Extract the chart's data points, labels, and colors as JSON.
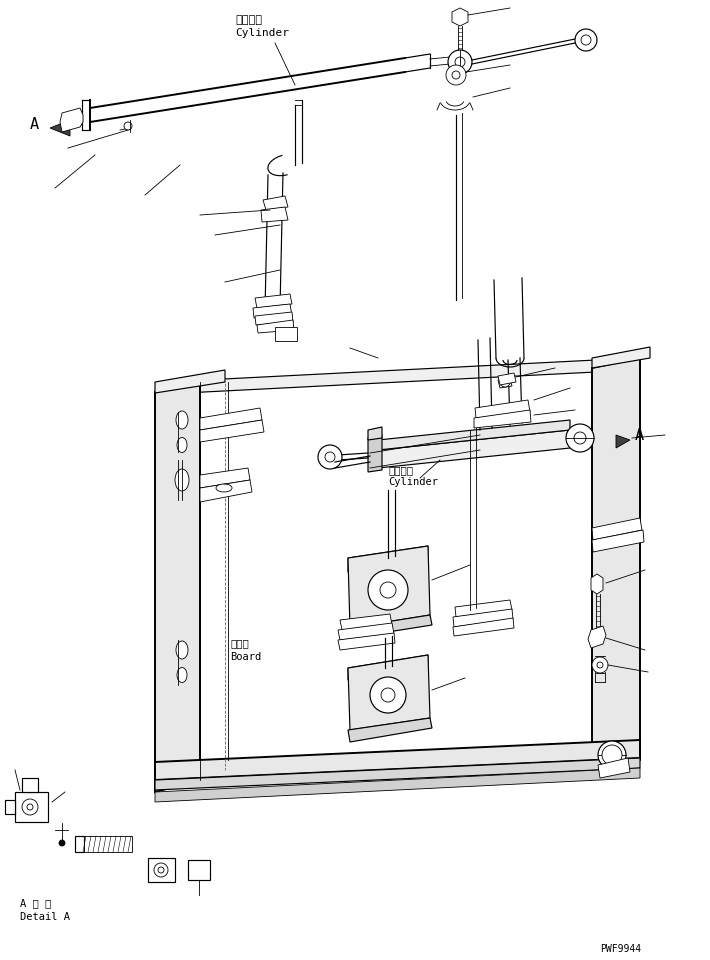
{
  "bg_color": "#ffffff",
  "line_color": "#000000",
  "figure_code": "PWF9944",
  "label_cylinder_jp": "シリンダ",
  "label_cylinder_en": "Cylinder",
  "label_board_jp": "ボード",
  "label_board_en": "Board",
  "label_detail_jp": "A 詳 細",
  "label_detail_en": "Detail A",
  "label_A": "A",
  "fig_width": 7.1,
  "fig_height": 9.6,
  "dpi": 100
}
